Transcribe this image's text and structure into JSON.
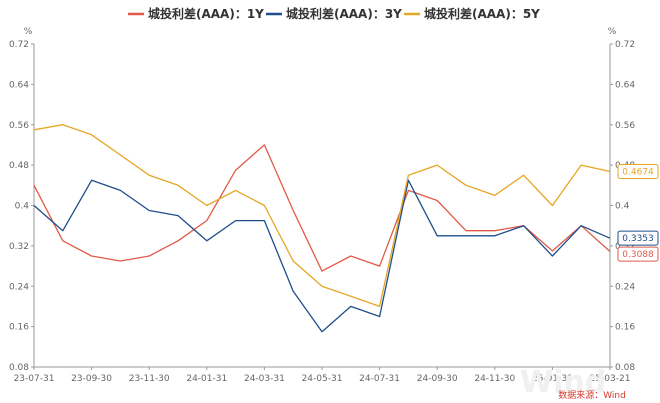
{
  "chart_data": {
    "type": "line",
    "x": [
      "23-07-31",
      "23-08-31",
      "23-09-30",
      "23-10-31",
      "23-11-30",
      "23-12-31",
      "24-01-31",
      "24-02-29",
      "24-03-31",
      "24-04-30",
      "24-05-31",
      "24-06-30",
      "24-07-31",
      "24-08-31",
      "24-09-30",
      "24-10-31",
      "24-11-30",
      "24-12-31",
      "25-01-31",
      "25-02-28",
      "25-03-21"
    ],
    "x_ticks": [
      "23-07-31",
      "23-09-30",
      "23-11-30",
      "24-01-31",
      "24-03-31",
      "24-05-31",
      "24-07-31",
      "24-09-30",
      "24-11-30",
      "25-01-31",
      "25-03-21"
    ],
    "series": [
      {
        "name": "城投利差(AAA)：1Y",
        "color": "#e05a47",
        "values": [
          0.44,
          0.33,
          0.3,
          0.29,
          0.3,
          0.33,
          0.37,
          0.47,
          0.52,
          0.39,
          0.27,
          0.3,
          0.28,
          0.43,
          0.41,
          0.35,
          0.35,
          0.36,
          0.31,
          0.36,
          0.3088
        ]
      },
      {
        "name": "城投利差(AAA)：3Y",
        "color": "#1f4e8c",
        "values": [
          0.4,
          0.35,
          0.45,
          0.43,
          0.39,
          0.38,
          0.33,
          0.37,
          0.37,
          0.23,
          0.15,
          0.2,
          0.18,
          0.45,
          0.34,
          0.34,
          0.34,
          0.36,
          0.3,
          0.36,
          0.3353
        ]
      },
      {
        "name": "城投利差(AAA)：5Y",
        "color": "#e5a623",
        "values": [
          0.55,
          0.56,
          0.54,
          0.5,
          0.46,
          0.44,
          0.4,
          0.43,
          0.4,
          0.29,
          0.24,
          0.22,
          0.2,
          0.46,
          0.48,
          0.44,
          0.42,
          0.46,
          0.4,
          0.48,
          0.4674
        ]
      }
    ],
    "ylim": [
      0.08,
      0.72
    ],
    "y_ticks": [
      "0.08",
      "0.16",
      "0.24",
      "0.32",
      "0.4",
      "0.48",
      "0.56",
      "0.64",
      "0.72"
    ],
    "ylabel_left": "%",
    "ylabel_right": "%",
    "end_labels": [
      "0.4674",
      "0.3353",
      "0.3088"
    ],
    "legend_position": "top",
    "grid": false
  },
  "source": "数据来源：Wind",
  "watermark": "Wind"
}
